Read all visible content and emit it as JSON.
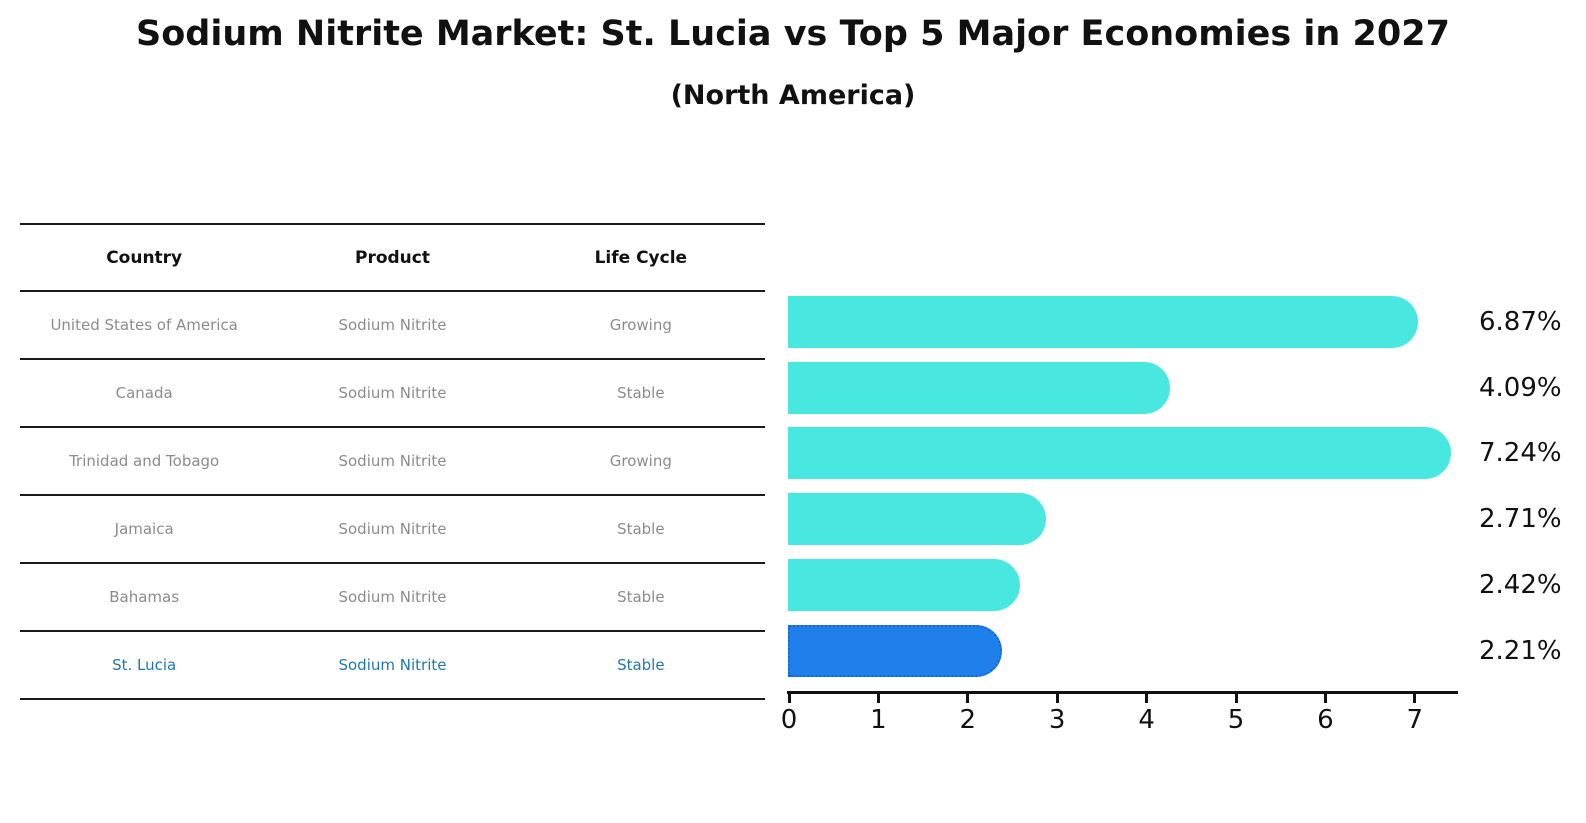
{
  "page": {
    "background": "#ffffff"
  },
  "chart_data": {
    "type": "bar",
    "orientation": "horizontal",
    "title": "Sodium Nitrite Market: St. Lucia vs Top 5 Major Economies in 2027",
    "subtitle": "(North America)",
    "categories": [
      "United States of America",
      "Canada",
      "Trinidad and Tobago",
      "Jamaica",
      "Bahamas",
      "St. Lucia"
    ],
    "values": [
      6.87,
      4.09,
      7.24,
      2.71,
      2.42,
      2.21
    ],
    "value_labels": [
      "6.87%",
      "4.09%",
      "7.24%",
      "2.71%",
      "2.42%",
      "2.21%"
    ],
    "x_ticks": [
      "0",
      "1",
      "2",
      "3",
      "4",
      "5",
      "6",
      "7"
    ],
    "xlim": [
      0,
      7.6
    ],
    "grid": false,
    "legend": false,
    "bar_color": "#48e8e1",
    "highlight_bar_color": "#1f80ec",
    "highlight_bar_border": "#1766d2",
    "highlight_index": 5,
    "axis_color": "#111111",
    "value_label_color": "#111111"
  },
  "table": {
    "headers": [
      "Country",
      "Product",
      "Life Cycle"
    ],
    "rows": [
      [
        "United States of America",
        "Sodium Nitrite",
        "Growing"
      ],
      [
        "Canada",
        "Sodium Nitrite",
        "Stable"
      ],
      [
        "Trinidad and Tobago",
        "Sodium Nitrite",
        "Growing"
      ],
      [
        "Jamaica",
        "Sodium Nitrite",
        "Stable"
      ],
      [
        "Bahamas",
        "Sodium Nitrite",
        "Stable"
      ],
      [
        "St. Lucia",
        "Sodium Nitrite",
        "Stable"
      ]
    ],
    "highlight_row": 5,
    "text_color": "#8c8c8c",
    "header_color": "#111111",
    "highlight_text_color": "#1f77b4"
  }
}
